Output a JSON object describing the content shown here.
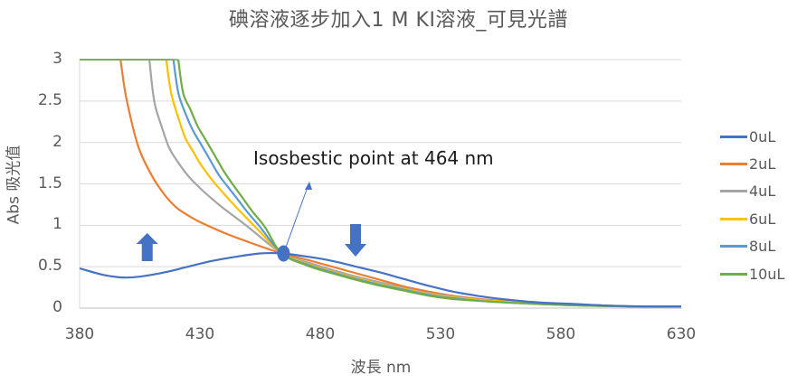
{
  "chart_data": {
    "type": "line",
    "title": "碘溶液逐步加入1 M KI溶液_可見光譜",
    "xlabel": "波長 nm",
    "ylabel": "Abs 吸光值",
    "xlim": [
      380,
      630
    ],
    "ylim": [
      0,
      3
    ],
    "xticks": [
      380,
      430,
      480,
      530,
      580,
      630
    ],
    "yticks": [
      0,
      0.5,
      1,
      1.5,
      2,
      2.5,
      3
    ],
    "ytick_labels": [
      "0",
      "0.5",
      "1",
      "1.5",
      "2",
      "2.5",
      "3"
    ],
    "grid": "horizontal",
    "legend_position": "right",
    "annotation": {
      "text": "Isosbestic point at 464 nm",
      "point": [
        464,
        0.66
      ]
    },
    "series": [
      {
        "name": "0uL",
        "color": "#4472C4",
        "x": [
          380,
          390,
          398,
          405,
          415,
          425,
          435,
          445,
          455,
          464,
          475,
          485,
          495,
          505,
          515,
          525,
          535,
          545,
          555,
          570,
          585,
          600,
          615,
          630
        ],
        "y": [
          0.48,
          0.4,
          0.37,
          0.38,
          0.43,
          0.5,
          0.57,
          0.62,
          0.66,
          0.66,
          0.62,
          0.57,
          0.5,
          0.43,
          0.35,
          0.27,
          0.2,
          0.15,
          0.11,
          0.07,
          0.05,
          0.03,
          0.02,
          0.02
        ]
      },
      {
        "name": "2uL",
        "color": "#ED7D31",
        "x": [
          397,
          399,
          402,
          405,
          410,
          415,
          420,
          425,
          430,
          440,
          450,
          464,
          475,
          485,
          495,
          505,
          515,
          525,
          535,
          550,
          570,
          590,
          610,
          630
        ],
        "y": [
          3.0,
          2.6,
          2.2,
          1.9,
          1.6,
          1.38,
          1.22,
          1.12,
          1.04,
          0.91,
          0.8,
          0.66,
          0.58,
          0.5,
          0.42,
          0.34,
          0.26,
          0.2,
          0.15,
          0.1,
          0.06,
          0.04,
          0.02,
          0.02
        ]
      },
      {
        "name": "4uL",
        "color": "#A5A5A5",
        "x": [
          409,
          411,
          414,
          417,
          420,
          425,
          430,
          435,
          440,
          450,
          464,
          475,
          485,
          495,
          505,
          515,
          525,
          535,
          550,
          570,
          590,
          610,
          630
        ],
        "y": [
          3.0,
          2.5,
          2.2,
          1.95,
          1.8,
          1.6,
          1.45,
          1.32,
          1.2,
          0.98,
          0.66,
          0.55,
          0.46,
          0.38,
          0.31,
          0.24,
          0.18,
          0.14,
          0.09,
          0.06,
          0.04,
          0.02,
          0.02
        ]
      },
      {
        "name": "6uL",
        "color": "#FFC000",
        "x": [
          416,
          418,
          421,
          424,
          427,
          430,
          435,
          440,
          445,
          450,
          455,
          464,
          475,
          485,
          495,
          505,
          515,
          525,
          535,
          550,
          570,
          590,
          610,
          630
        ],
        "y": [
          3.0,
          2.6,
          2.3,
          2.05,
          1.9,
          1.75,
          1.55,
          1.38,
          1.22,
          1.07,
          0.92,
          0.66,
          0.53,
          0.44,
          0.36,
          0.29,
          0.23,
          0.17,
          0.13,
          0.09,
          0.06,
          0.04,
          0.02,
          0.02
        ]
      },
      {
        "name": "8uL",
        "color": "#5B9BD5",
        "x": [
          419,
          421,
          424,
          427,
          430,
          434,
          438,
          442,
          446,
          450,
          455,
          464,
          475,
          485,
          495,
          505,
          515,
          525,
          535,
          550,
          570,
          590,
          610,
          630
        ],
        "y": [
          3.0,
          2.6,
          2.35,
          2.15,
          2.0,
          1.8,
          1.6,
          1.45,
          1.3,
          1.15,
          0.98,
          0.66,
          0.52,
          0.43,
          0.35,
          0.28,
          0.22,
          0.16,
          0.12,
          0.08,
          0.05,
          0.03,
          0.02,
          0.02
        ]
      },
      {
        "name": "10uL",
        "color": "#70AD47",
        "x": [
          421,
          423,
          426,
          429,
          432,
          436,
          440,
          444,
          448,
          452,
          457,
          464,
          475,
          485,
          495,
          505,
          515,
          525,
          535,
          550,
          570,
          590,
          610,
          630
        ],
        "y": [
          3.0,
          2.6,
          2.4,
          2.2,
          2.05,
          1.85,
          1.65,
          1.48,
          1.32,
          1.16,
          0.98,
          0.66,
          0.51,
          0.42,
          0.34,
          0.27,
          0.21,
          0.15,
          0.11,
          0.08,
          0.05,
          0.03,
          0.02,
          0.02
        ]
      }
    ],
    "markers": {
      "up_arrow": {
        "x": 419,
        "y": 0.65,
        "color": "#4472C4"
      },
      "down_arrow": {
        "x": 484,
        "y": 0.85,
        "color": "#4472C4"
      }
    }
  },
  "labels": {
    "title": "碘溶液逐步加入1 M KI溶液_可見光譜",
    "xlabel": "波長 nm",
    "ylabel": "Abs 吸光值",
    "annotation": "Isosbestic point at 464 nm"
  }
}
